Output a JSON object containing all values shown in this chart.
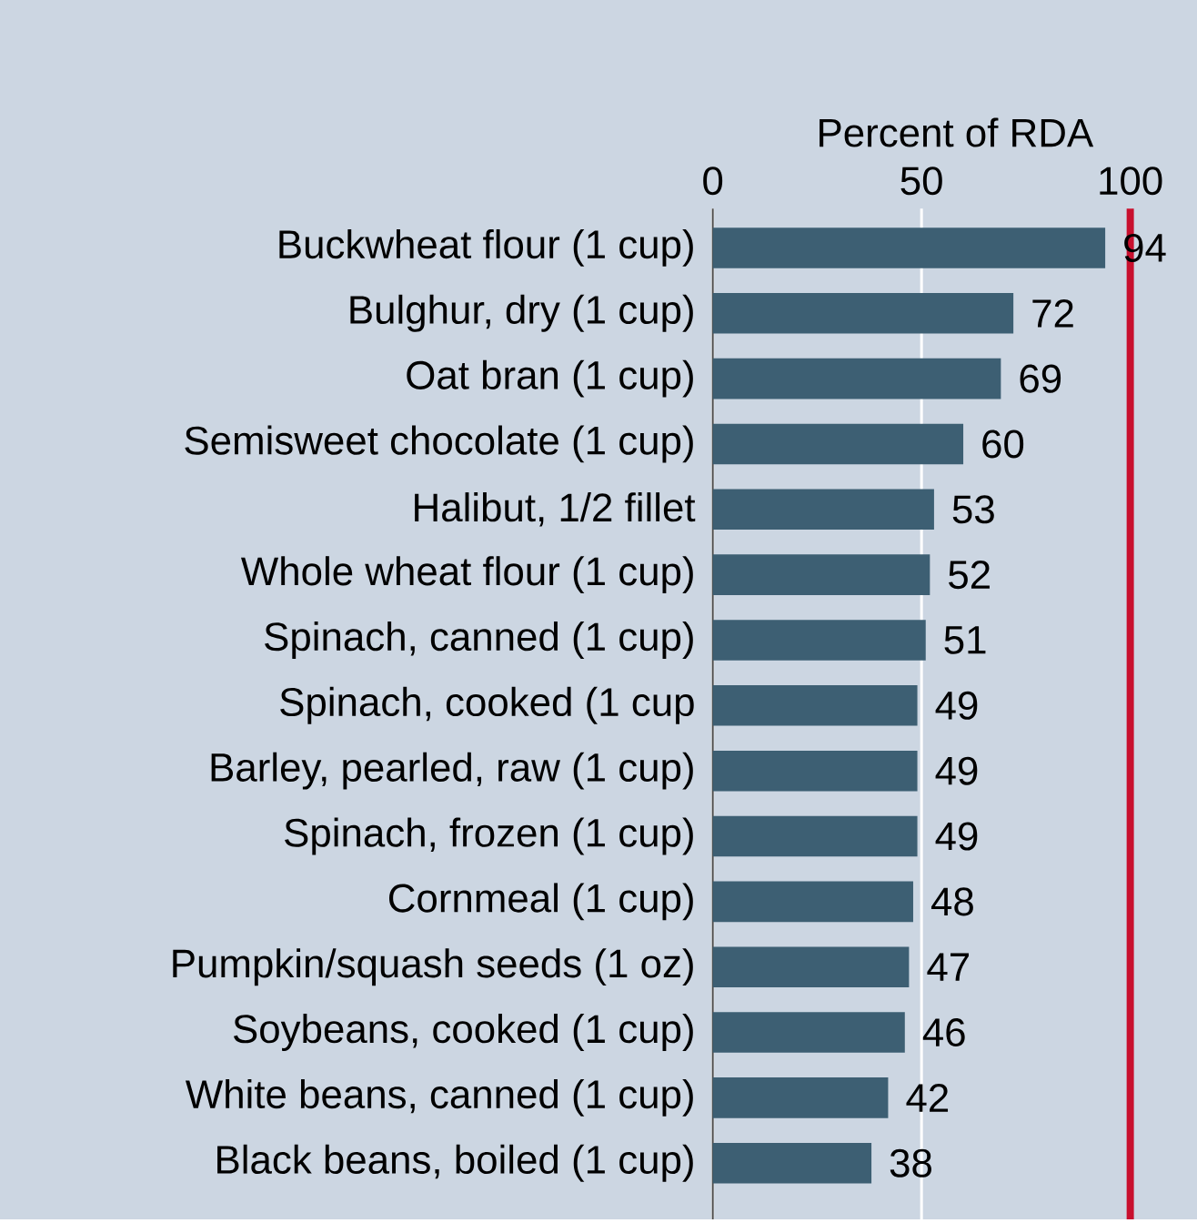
{
  "chart_data": {
    "type": "bar",
    "orientation": "horizontal",
    "xlabel": "Percent of RDA",
    "categories": [
      "Buckwheat flour (1 cup)",
      "Bulghur, dry (1 cup)",
      "Oat bran (1 cup)",
      "Semisweet chocolate (1 cup)",
      "Halibut, 1/2 fillet",
      "Whole wheat flour (1 cup)",
      "Spinach, canned (1 cup)",
      "Spinach, cooked (1 cup",
      "Barley, pearled, raw (1 cup)",
      "Spinach, frozen (1 cup)",
      "Cornmeal (1 cup)",
      "Pumpkin/squash seeds (1 oz)",
      "Soybeans, cooked (1 cup)",
      "White beans, canned (1 cup)",
      "Black beans, boiled (1 cup)"
    ],
    "values": [
      94,
      72,
      69,
      60,
      53,
      52,
      51,
      49,
      49,
      49,
      48,
      47,
      46,
      42,
      38
    ],
    "color": "#3d5f73",
    "xlim": [
      0,
      116
    ],
    "xticks": [
      0,
      50,
      100
    ],
    "grid": "x",
    "ref_lines": [
      {
        "axis": "x",
        "value": 100,
        "color": "#c8102e"
      }
    ],
    "data_labels": true
  }
}
